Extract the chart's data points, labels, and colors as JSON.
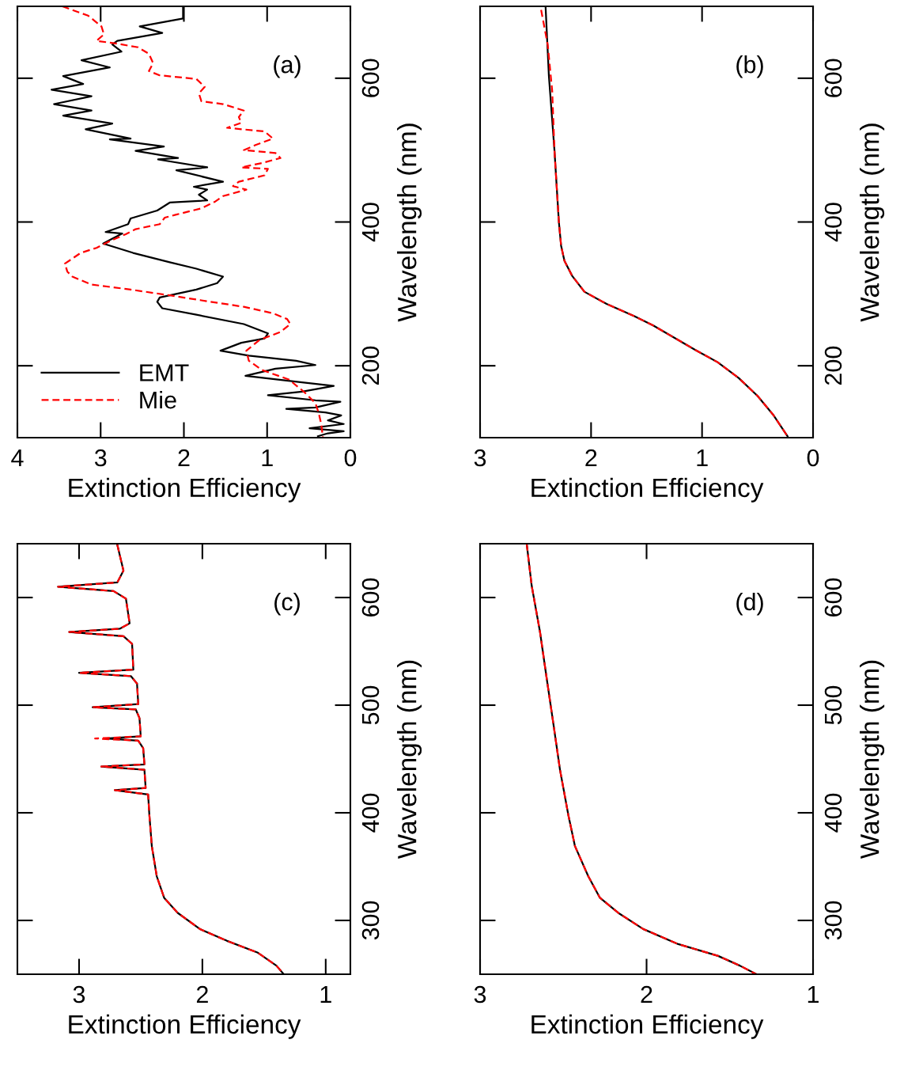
{
  "chart_data": [
    {
      "type": "line",
      "xlabel": "Extinction Efficiency",
      "ylabel": "Wavelength (nm)",
      "annotations": [
        "(a)"
      ],
      "legend": "bottom left",
      "xlim": [
        4,
        0
      ],
      "xticks": [
        4,
        3,
        2,
        1,
        0
      ],
      "ylim": [
        100,
        700
      ],
      "yticks": [
        200,
        400,
        600
      ],
      "series": [
        {
          "name": "EMT",
          "color": "#000000",
          "line_style": "solid",
          "x": [
            2.01,
            2.01,
            2.53,
            2.26,
            2.8,
            2.86,
            2.75,
            3.23,
            2.89,
            3.45,
            3.21,
            3.59,
            3.11,
            3.56,
            3.11,
            3.45,
            2.86,
            3.18,
            2.64,
            2.89,
            2.24,
            2.58,
            2.07,
            2.31,
            1.72,
            2.09,
            1.53,
            1.88,
            1.72,
            1.82,
            1.72,
            2.17,
            2.32,
            2.64,
            2.67,
            2.94,
            2.74,
            2.89,
            2.97,
            2.61,
            2.17,
            1.85,
            1.53,
            1.6,
            1.85,
            2.29,
            2.32,
            2.26,
            1.85,
            1.28,
            0.99,
            1.03,
            1.31,
            1.56,
            1.22,
            0.65,
            0.42,
            0.9,
            1.26,
            0.58,
            0.2,
            0.58,
            0.99,
            0.42,
            0.12,
            0.42,
            0.77,
            0.3,
            0.11,
            0.27,
            0.08,
            0.49,
            0.08,
            0.27,
            0.39
          ],
          "values": [
            700,
            683,
            672,
            663,
            652,
            647,
            637,
            625,
            615,
            603,
            592,
            584,
            575,
            564,
            555,
            548,
            537,
            529,
            516,
            515,
            505,
            499,
            489,
            487,
            476,
            472,
            456,
            449,
            445,
            438,
            430,
            427,
            416,
            405,
            397,
            386,
            384,
            375,
            370,
            357,
            344,
            335,
            324,
            315,
            306,
            295,
            289,
            280,
            271,
            258,
            245,
            238,
            232,
            221,
            214,
            207,
            201,
            196,
            186,
            177,
            172,
            164,
            159,
            152,
            150,
            142,
            140,
            135,
            131,
            124,
            119,
            113,
            109,
            106,
            102
          ]
        },
        {
          "name": "Mie",
          "color": "#ff0000",
          "line_style": "dashed",
          "x": [
            3.46,
            3.15,
            2.99,
            2.96,
            3.05,
            2.8,
            2.55,
            2.42,
            2.37,
            2.42,
            2.29,
            1.85,
            1.75,
            1.82,
            1.79,
            1.53,
            1.28,
            1.34,
            1.31,
            1.48,
            1.03,
            0.93,
            1.14,
            1.28,
            0.9,
            0.84,
            1.06,
            1.31,
            0.99,
            1.03,
            1.34,
            1.41,
            1.25,
            1.53,
            1.63,
            1.79,
            2.1,
            2.23,
            2.29,
            2.58,
            2.7,
            2.86,
            3.05,
            3.24,
            3.43,
            3.4,
            3.34,
            3.11,
            2.64,
            2.17,
            1.79,
            1.28,
            0.93,
            0.76,
            0.72,
            0.84,
            1.09,
            1.25,
            1.22,
            1.06,
            0.74,
            0.55,
            0.42,
            0.38,
            0.35,
            0.33
          ],
          "values": [
            700,
            687,
            672,
            661,
            652,
            648,
            643,
            634,
            621,
            610,
            604,
            599,
            588,
            579,
            568,
            564,
            555,
            546,
            538,
            531,
            526,
            516,
            507,
            500,
            496,
            489,
            482,
            476,
            474,
            465,
            456,
            450,
            445,
            436,
            428,
            419,
            410,
            406,
            397,
            390,
            383,
            375,
            364,
            357,
            342,
            331,
            324,
            313,
            306,
            298,
            291,
            282,
            273,
            265,
            258,
            247,
            236,
            221,
            207,
            194,
            181,
            163,
            148,
            134,
            119,
            100
          ]
        }
      ]
    },
    {
      "type": "line",
      "xlabel": "Extinction Efficiency",
      "ylabel": "Wavelength (nm)",
      "annotations": [
        "(b)"
      ],
      "xlim": [
        3,
        0
      ],
      "xticks": [
        3,
        2,
        1,
        0
      ],
      "ylim": [
        100,
        700
      ],
      "yticks": [
        200,
        400,
        600
      ],
      "series": [
        {
          "color": "#000000",
          "line_style": "solid",
          "x": [
            2.41,
            2.38,
            2.33,
            2.29,
            2.27,
            2.24,
            2.17,
            2.06,
            1.86,
            1.61,
            1.44,
            1.25,
            1.06,
            0.86,
            0.67,
            0.5,
            0.36,
            0.23
          ],
          "values": [
            700,
            603,
            500,
            400,
            367,
            346,
            325,
            303,
            286,
            269,
            256,
            239,
            222,
            205,
            183,
            158,
            132,
            102
          ]
        },
        {
          "color": "#ff0000",
          "line_style": "dashed",
          "x": [
            2.45,
            2.39,
            2.35,
            2.33,
            2.29,
            2.27,
            2.24,
            2.17,
            2.06,
            1.86,
            1.61,
            1.44,
            1.25,
            1.06,
            0.86,
            0.67,
            0.5,
            0.36,
            0.23
          ],
          "values": [
            695,
            646,
            582,
            500,
            400,
            367,
            346,
            325,
            303,
            286,
            269,
            256,
            239,
            222,
            205,
            183,
            158,
            132,
            102
          ]
        }
      ]
    },
    {
      "type": "line",
      "xlabel": "Extinction Efficiency",
      "ylabel": "Wavelength (nm)",
      "annotations": [
        "(c)"
      ],
      "xlim": [
        3.5,
        0.8
      ],
      "xticks": [
        3,
        2,
        1
      ],
      "ylim": [
        250,
        650
      ],
      "yticks": [
        300,
        400,
        500,
        600
      ],
      "series": [
        {
          "color": "#000000",
          "line_style": "solid",
          "x": [
            2.69,
            2.64,
            2.69,
            3.17,
            2.72,
            2.62,
            2.59,
            2.67,
            3.08,
            2.64,
            2.57,
            2.56,
            3.0,
            2.58,
            2.53,
            2.52,
            2.89,
            2.54,
            2.51,
            2.5,
            2.78,
            2.52,
            2.48,
            2.47,
            2.82,
            2.47,
            2.46,
            2.71,
            2.44,
            2.43,
            2.41,
            2.37,
            2.31,
            2.2,
            2.02,
            1.8,
            1.55,
            1.4,
            1.34
          ],
          "values": [
            649,
            625,
            614,
            610,
            606,
            599,
            576,
            571,
            568,
            564,
            557,
            533,
            530,
            527,
            520,
            501,
            498,
            496,
            488,
            471,
            469,
            467,
            460,
            445,
            443,
            440,
            423,
            421,
            417,
            398,
            369,
            341,
            321,
            307,
            292,
            281,
            270,
            258,
            250
          ]
        },
        {
          "color": "#ff0000",
          "line_style": "dashed",
          "x": [
            2.69,
            2.64,
            2.69,
            3.17,
            2.72,
            2.62,
            2.59,
            2.67,
            3.08,
            2.64,
            2.57,
            2.56,
            3.0,
            2.58,
            2.53,
            2.52,
            2.89,
            2.54,
            2.51,
            2.5,
            2.87,
            2.52,
            2.48,
            2.47,
            2.82,
            2.47,
            2.46,
            2.71,
            2.44,
            2.43,
            2.41,
            2.37,
            2.31,
            2.2,
            2.02,
            1.8,
            1.55,
            1.4,
            1.34
          ],
          "values": [
            649,
            625,
            614,
            610,
            606,
            599,
            576,
            571,
            568,
            564,
            557,
            533,
            530,
            527,
            520,
            501,
            498,
            496,
            488,
            471,
            469,
            467,
            460,
            445,
            443,
            440,
            423,
            421,
            417,
            398,
            369,
            341,
            321,
            307,
            292,
            281,
            270,
            258,
            250
          ]
        }
      ]
    },
    {
      "type": "line",
      "xlabel": "Extinction Efficiency",
      "ylabel": "Wavelength (nm)",
      "annotations": [
        "(d)"
      ],
      "xlim": [
        3,
        1
      ],
      "xticks": [
        3,
        2,
        1
      ],
      "ylim": [
        250,
        650
      ],
      "yticks": [
        300,
        400,
        500,
        600
      ],
      "series": [
        {
          "color": "#000000",
          "line_style": "solid",
          "x": [
            2.72,
            2.69,
            2.64,
            2.6,
            2.56,
            2.52,
            2.47,
            2.43,
            2.35,
            2.28,
            2.17,
            2.02,
            1.81,
            1.57,
            1.44,
            1.34
          ],
          "values": [
            650,
            611,
            568,
            525,
            483,
            440,
            398,
            369,
            341,
            321,
            307,
            292,
            278,
            267,
            258,
            250
          ]
        },
        {
          "color": "#ff0000",
          "line_style": "dashed",
          "x": [
            2.72,
            2.69,
            2.64,
            2.6,
            2.56,
            2.52,
            2.47,
            2.43,
            2.35,
            2.28,
            2.17,
            2.02,
            1.81,
            1.57,
            1.44,
            1.34
          ],
          "values": [
            650,
            611,
            568,
            525,
            483,
            440,
            398,
            369,
            341,
            321,
            307,
            292,
            278,
            267,
            258,
            250
          ]
        }
      ]
    }
  ]
}
